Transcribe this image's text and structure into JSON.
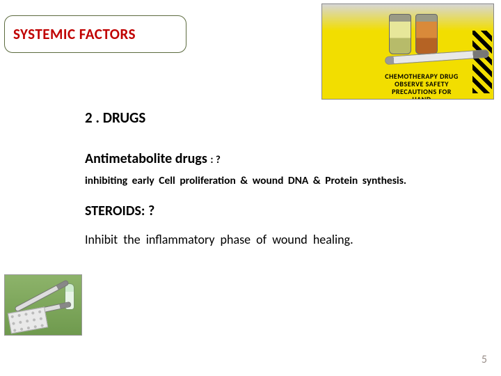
{
  "title": "SYSTEMIC   FACTORS",
  "title_color": "#c00000",
  "pill_border": "#5c6b3f",
  "heading_drugs": "2 .  DRUGS",
  "heading_anti": "Antimetabolite   drugs ",
  "anti_suffix": ": ?",
  "line_inhibit": "inhibiting  early   Cell  proliferation   &   wound DNA   &   Protein  synthesis.",
  "heading_steroids": "STEROIDS: ?",
  "line_steroid": " Inhibit  the   inflammatory   phase   of    wound   healing.",
  "page_number": "5",
  "top_image": {
    "bg": "#f2de00",
    "chem_lines": "CHEMOTHERAPY DRUG\nOBSERVE SAFETY\nPRECAUTIONS FOR\nHAND"
  },
  "bottom_image": {
    "bg_from": "#8db36a",
    "bg_to": "#6f9a4e"
  }
}
